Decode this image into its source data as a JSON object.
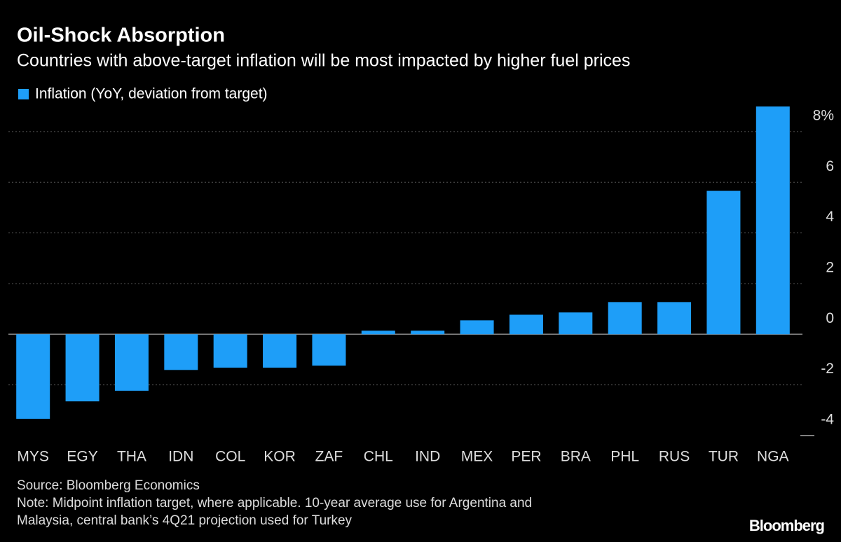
{
  "chart_data": {
    "type": "bar",
    "title": "Oil-Shock Absorption",
    "subtitle": "Countries with above-target inflation will be most impacted by higher fuel prices",
    "categories": [
      "MYS",
      "EGY",
      "THA",
      "IDN",
      "COL",
      "KOR",
      "ZAF",
      "CHL",
      "IND",
      "MEX",
      "PER",
      "BRA",
      "PHL",
      "RUS",
      "TUR",
      "NGA"
    ],
    "series": [
      {
        "name": "Inflation (YoY, deviation from target)",
        "color": "#1e9ef8",
        "values": [
          -3.34,
          -2.65,
          -2.23,
          -1.41,
          -1.32,
          -1.32,
          -1.24,
          0.14,
          0.14,
          0.55,
          0.77,
          0.86,
          1.27,
          1.27,
          5.66,
          8.99
        ]
      }
    ],
    "ylim": [
      -4,
      9.2
    ],
    "yticks": [
      -4,
      -2,
      0,
      2,
      4,
      6,
      {
        "value": 8,
        "label": "8%"
      }
    ],
    "grid": true,
    "source": "Source: Bloomberg Economics",
    "note": [
      "Note: Midpoint inflation target, where applicable. 10-year average use for Argentina and",
      "Malaysia, central bank’s 4Q21 projection used for Turkey"
    ],
    "brand": "Bloomberg"
  }
}
